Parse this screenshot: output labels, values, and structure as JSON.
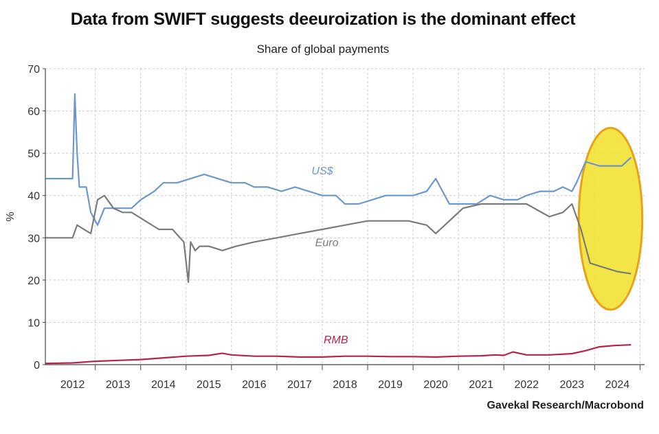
{
  "chart_data": {
    "type": "line",
    "title": "Data from SWIFT suggests deeuroization is the dominant effect",
    "subtitle": "Share of global payments",
    "ylabel": "%",
    "xlabel": "",
    "source": "Gavekal Research/Macrobond",
    "ylim": [
      0,
      70
    ],
    "xlim": [
      2011.4,
      2024.6
    ],
    "yticks": [
      "0",
      "10",
      "20",
      "30",
      "40",
      "50",
      "60",
      "70"
    ],
    "xticks": [
      "2012",
      "2013",
      "2014",
      "2015",
      "2016",
      "2017",
      "2018",
      "2019",
      "2020",
      "2021",
      "2022",
      "2023",
      "2024"
    ],
    "grid": true,
    "highlight": {
      "type": "ellipse",
      "x_range": [
        2023.15,
        2024.55
      ],
      "y_range": [
        13,
        56
      ],
      "color": "#f2e233"
    },
    "series": [
      {
        "name": "US$",
        "color": "#6a97cc",
        "x": [
          2011.4,
          2012.0,
          2012.05,
          2012.1,
          2012.15,
          2012.3,
          2012.4,
          2012.55,
          2012.7,
          2012.9,
          2013.1,
          2013.3,
          2013.5,
          2013.8,
          2014.0,
          2014.3,
          2014.6,
          2014.9,
          2015.2,
          2015.5,
          2015.8,
          2016.0,
          2016.3,
          2016.6,
          2016.9,
          2017.2,
          2017.5,
          2017.8,
          2018.0,
          2018.3,
          2018.6,
          2018.9,
          2019.2,
          2019.5,
          2019.8,
          2020.0,
          2020.1,
          2020.3,
          2020.6,
          2020.9,
          2021.2,
          2021.5,
          2021.8,
          2022.0,
          2022.3,
          2022.6,
          2022.8,
          2023.0,
          2023.1,
          2023.3,
          2023.6,
          2023.9,
          2024.1,
          2024.3
        ],
        "values": [
          44,
          44,
          64,
          50,
          42,
          42,
          36,
          33,
          37,
          37,
          37,
          37,
          39,
          41,
          43,
          43,
          44,
          45,
          44,
          43,
          43,
          42,
          42,
          41,
          42,
          41,
          40,
          40,
          38,
          38,
          39,
          40,
          40,
          40,
          41,
          44,
          42,
          38,
          38,
          38,
          40,
          39,
          39,
          40,
          41,
          41,
          42,
          41,
          43,
          48,
          47,
          47,
          47,
          49
        ]
      },
      {
        "name": "Euro",
        "color": "#7a7a7a",
        "x": [
          2011.4,
          2012.0,
          2012.1,
          2012.4,
          2012.55,
          2012.7,
          2012.9,
          2013.1,
          2013.3,
          2013.6,
          2013.9,
          2014.2,
          2014.45,
          2014.55,
          2014.6,
          2014.7,
          2014.8,
          2015.0,
          2015.3,
          2015.6,
          2016.0,
          2016.5,
          2017.0,
          2017.5,
          2018.0,
          2018.5,
          2019.0,
          2019.4,
          2019.8,
          2020.0,
          2020.3,
          2020.6,
          2021.0,
          2021.5,
          2022.0,
          2022.5,
          2022.8,
          2023.0,
          2023.2,
          2023.4,
          2023.7,
          2024.0,
          2024.3
        ],
        "values": [
          30,
          30,
          33,
          31,
          39,
          40,
          37,
          36,
          36,
          34,
          32,
          32,
          29,
          19.5,
          29,
          27,
          28,
          28,
          27,
          28,
          29,
          30,
          31,
          32,
          33,
          34,
          34,
          34,
          33,
          31,
          34,
          37,
          38,
          38,
          38,
          35,
          36,
          38,
          32,
          24,
          23,
          22,
          21.5
        ]
      },
      {
        "name": "RMB",
        "color": "#b4234a",
        "x": [
          2011.4,
          2012.0,
          2012.5,
          2013.0,
          2013.5,
          2014.0,
          2014.5,
          2015.0,
          2015.3,
          2015.5,
          2016.0,
          2016.5,
          2017.0,
          2017.5,
          2018.0,
          2018.5,
          2019.0,
          2019.5,
          2020.0,
          2020.5,
          2021.0,
          2021.3,
          2021.5,
          2021.7,
          2022.0,
          2022.5,
          2023.0,
          2023.3,
          2023.6,
          2023.9,
          2024.1,
          2024.3
        ],
        "values": [
          0.3,
          0.4,
          0.8,
          1.0,
          1.2,
          1.6,
          2.0,
          2.2,
          2.7,
          2.3,
          2.0,
          2.0,
          1.8,
          1.8,
          2.0,
          2.0,
          1.9,
          1.9,
          1.8,
          2.0,
          2.1,
          2.3,
          2.2,
          3.0,
          2.3,
          2.3,
          2.6,
          3.3,
          4.2,
          4.5,
          4.6,
          4.7
        ]
      }
    ]
  }
}
